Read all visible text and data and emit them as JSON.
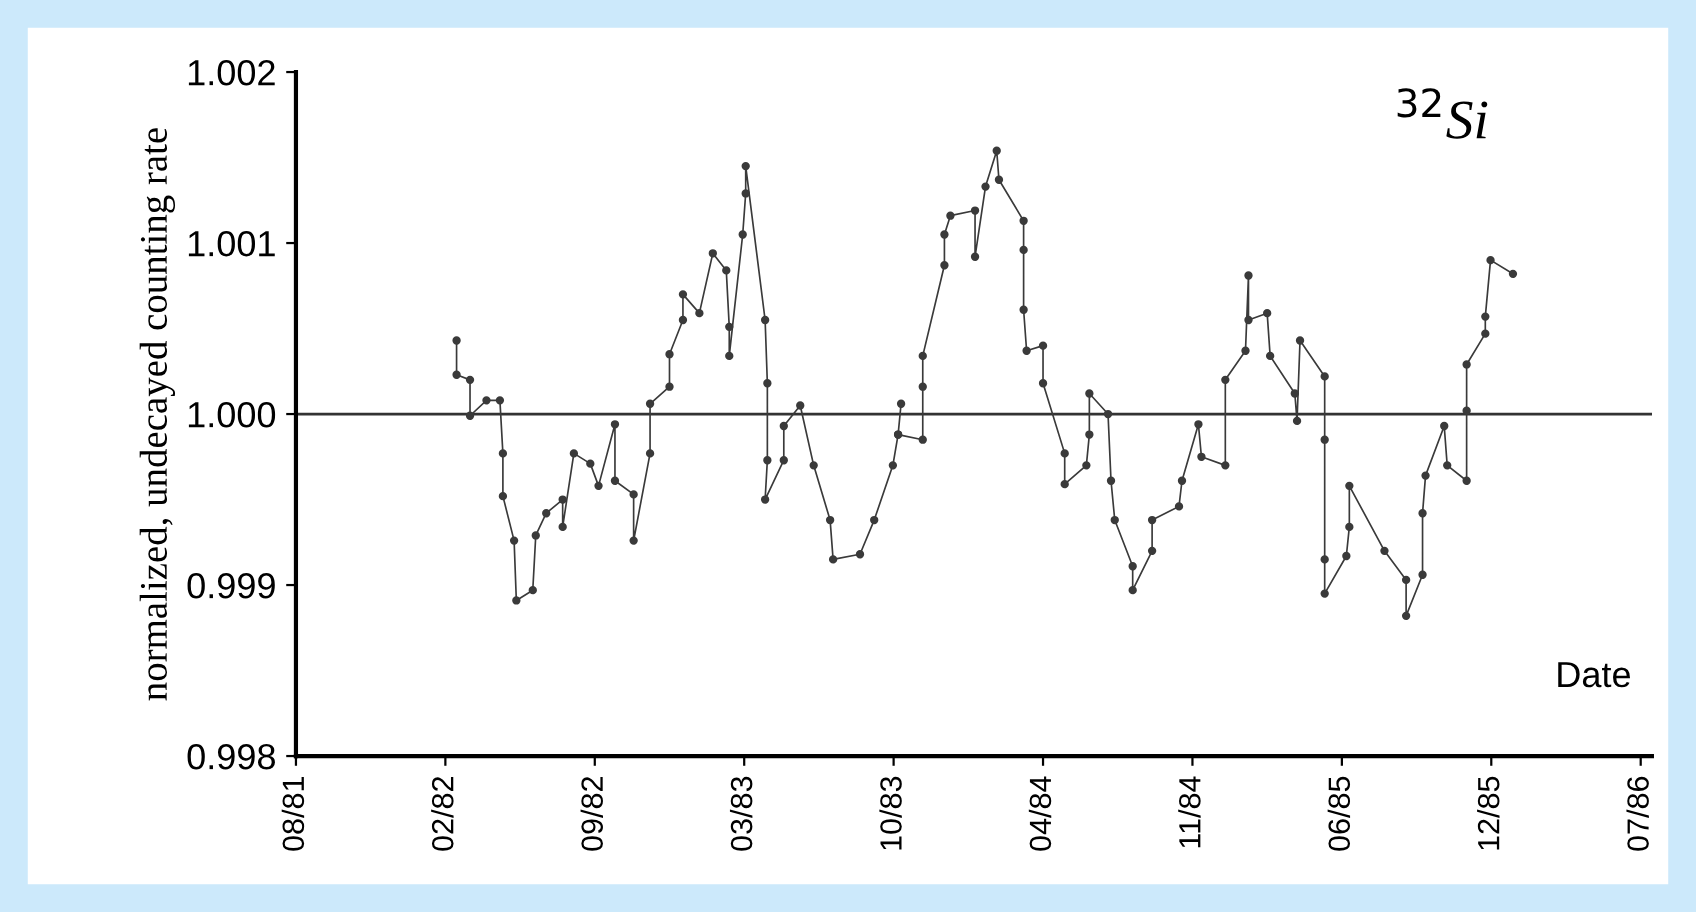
{
  "chart_data": {
    "type": "line",
    "ylabel": "normalized, undecayed counting rate",
    "xlabel": "Date",
    "annotations": [
      "$^{32}$Si"
    ],
    "marker": "circle",
    "series": [
      {
        "color": "#3a3a3a",
        "x": [
          "1982-03-04",
          "1982-03-04",
          "1982-03-22",
          "1982-03-22",
          "1982-04-13",
          "1982-05-01",
          "1982-05-05",
          "1982-05-05",
          "1982-05-20",
          "1982-05-23",
          "1982-06-14",
          "1982-06-18",
          "1982-07-02",
          "1982-07-24",
          "1982-07-24",
          "1982-08-08",
          "1982-08-30",
          "1982-09-10",
          "1982-10-02",
          "1982-10-02",
          "1982-10-27",
          "1982-10-27",
          "1982-11-18",
          "1982-11-18",
          "1982-12-14",
          "1982-12-14",
          "1983-01-01",
          "1983-01-01",
          "1983-01-23",
          "1983-02-10",
          "1983-02-28",
          "1983-03-04",
          "1983-03-04",
          "1983-03-22",
          "1983-03-26",
          "1983-03-26",
          "1983-04-21",
          "1983-04-24",
          "1983-04-24",
          "1983-04-21",
          "1983-05-16",
          "1983-05-16",
          "1983-06-07",
          "1983-06-25",
          "1983-07-17",
          "1983-07-21",
          "1983-08-26",
          "1983-09-14",
          "1983-10-09",
          "1983-10-16",
          "1983-10-20",
          "1983-10-16",
          "1983-11-18",
          "1983-11-18",
          "1983-11-18",
          "1983-12-17",
          "1983-12-17",
          "1983-12-25",
          "1984-01-27",
          "1984-01-27",
          "1984-02-10",
          "1984-02-25",
          "1984-02-28",
          "1984-04-01",
          "1984-04-01",
          "1984-04-01",
          "1984-04-05",
          "1984-04-27",
          "1984-04-27",
          "1984-05-26",
          "1984-05-26",
          "1984-06-24",
          "1984-06-28",
          "1984-06-28",
          "1984-07-23",
          "1984-07-27",
          "1984-08-01",
          "1984-08-25",
          "1984-08-25",
          "1984-09-20",
          "1984-09-20",
          "1984-10-26",
          "1984-10-30",
          "1984-11-21",
          "1984-11-25",
          "1984-12-27",
          "1984-12-27",
          "1985-01-23",
          "1985-01-27",
          "1985-01-27",
          "1985-02-21",
          "1985-02-25",
          "1985-03-30",
          "1985-04-02",
          "1985-04-06",
          "1985-05-09",
          "1985-05-09",
          "1985-05-09",
          "1985-05-09",
          "1985-06-07",
          "1985-06-11",
          "1985-06-11",
          "1985-07-28",
          "1985-08-26",
          "1985-08-26",
          "1985-09-17",
          "1985-09-17",
          "1985-09-21",
          "1985-10-16",
          "1985-10-20",
          "1985-11-15",
          "1985-11-15",
          "1985-11-15",
          "1985-12-10",
          "1985-12-10",
          "1985-12-17",
          "1986-01-16"
        ],
        "values": [
          1.00043,
          1.00023,
          1.0002,
          0.99999,
          1.00008,
          1.00008,
          0.99977,
          0.99952,
          0.99926,
          0.99891,
          0.99897,
          0.99929,
          0.99942,
          0.9995,
          0.99934,
          0.99977,
          0.99971,
          0.99958,
          0.99994,
          0.99961,
          0.99953,
          0.99926,
          0.99977,
          1.00006,
          1.00016,
          1.00035,
          1.00055,
          1.0007,
          1.00059,
          1.00094,
          1.00084,
          1.00051,
          1.00034,
          1.00105,
          1.00129,
          1.00145,
          1.00055,
          1.00018,
          0.99973,
          0.9995,
          0.99973,
          0.99993,
          1.00005,
          0.9997,
          0.99938,
          0.99915,
          0.99918,
          0.99938,
          0.9997,
          0.99988,
          1.00006,
          0.99988,
          0.99985,
          1.00016,
          1.00034,
          1.00087,
          1.00105,
          1.00116,
          1.00119,
          1.00092,
          1.00133,
          1.00154,
          1.00137,
          1.00113,
          1.00096,
          1.00061,
          1.00037,
          1.0004,
          1.00018,
          0.99977,
          0.99959,
          0.9997,
          0.99988,
          1.00012,
          1.0,
          0.99961,
          0.99938,
          0.99911,
          0.99897,
          0.9992,
          0.99938,
          0.99946,
          0.99961,
          0.99994,
          0.99975,
          0.9997,
          1.0002,
          1.00037,
          1.00081,
          1.00055,
          1.00059,
          1.00034,
          1.00012,
          0.99996,
          1.00043,
          1.00022,
          0.99985,
          0.99915,
          0.99895,
          0.99917,
          0.99934,
          0.99958,
          0.9992,
          0.99903,
          0.99882,
          0.99906,
          0.99942,
          0.99964,
          0.99993,
          0.9997,
          0.99961,
          1.00002,
          1.00029,
          1.00047,
          1.00057,
          1.0009,
          1.00082
        ]
      }
    ],
    "ref_lines": [
      {
        "axis": "y",
        "value": 1.0,
        "color": "#333333"
      }
    ],
    "xlim": [
      "1981-08-01",
      "1986-07-21"
    ],
    "xticks": [
      {
        "value": "1981-08-01",
        "label": "08/81"
      },
      {
        "value": "1982-02-17",
        "label": "02/82"
      },
      {
        "value": "1982-09-05",
        "label": "09/82"
      },
      {
        "value": "1983-03-24",
        "label": "03/83"
      },
      {
        "value": "1983-10-10",
        "label": "10/83"
      },
      {
        "value": "1984-04-27",
        "label": "04/84"
      },
      {
        "value": "1984-11-13",
        "label": "11/84"
      },
      {
        "value": "1985-06-01",
        "label": "06/85"
      },
      {
        "value": "1985-12-18",
        "label": "12/85"
      },
      {
        "value": "1986-07-06",
        "label": "07/86"
      }
    ],
    "ylim": [
      0.998,
      1.002
    ],
    "yticks": [
      {
        "value": 0.998,
        "label": "0.998"
      },
      {
        "value": 0.999,
        "label": "0.999"
      },
      {
        "value": 1.0,
        "label": "1.000"
      },
      {
        "value": 1.001,
        "label": "1.001"
      },
      {
        "value": 1.002,
        "label": "1.002"
      }
    ],
    "grid": false,
    "legend": false
  }
}
